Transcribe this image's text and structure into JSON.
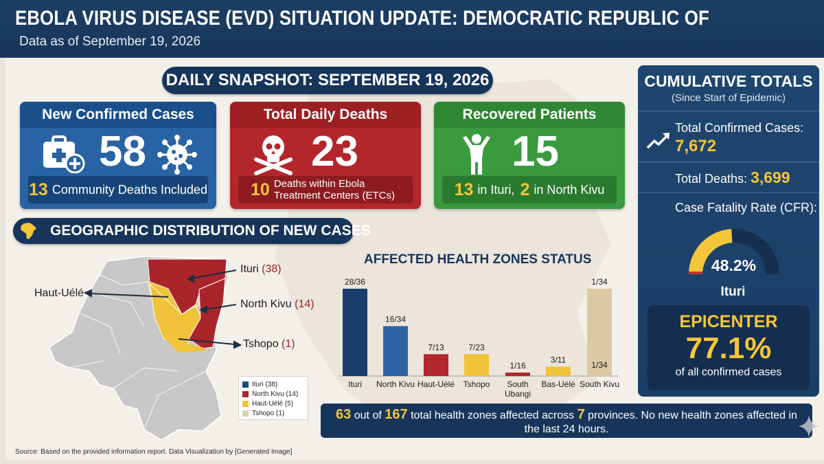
{
  "header": {
    "title": "EBOLA VIRUS DISEASE (EVD) SITUATION UPDATE: DEMOCRATIC REPUBLIC OF THE CONGO (DRC)",
    "subtitle": "Data as of September 19, 2026"
  },
  "snapshot": {
    "title": "DAILY SNAPSHOT: SEPTEMBER 19, 2026",
    "new_cases": {
      "label": "New Confirmed Cases",
      "value": "58",
      "foot_num": "13",
      "foot_text": "Community Deaths Included"
    },
    "deaths": {
      "label": "Total Daily Deaths",
      "value": "23",
      "foot_num": "10",
      "foot_text": "Deaths within Ebola Treatment Centers (ETCs)"
    },
    "recovered": {
      "label": "Recovered Patients",
      "value": "15",
      "foot_num1": "13",
      "foot_text1": "in Ituri,",
      "foot_num2": "2",
      "foot_text2": "in North Kivu"
    }
  },
  "geo": {
    "title": "GEOGRAPHIC DISTRIBUTION OF NEW CASES",
    "labels": {
      "ituri": {
        "name": "Ituri",
        "count": "(38)"
      },
      "north_kivu": {
        "name": "North Kivu",
        "count": "(14)"
      },
      "tshopo": {
        "name": "Tshopo",
        "count": "(1)"
      },
      "haut_uele": {
        "name": "Haut-Uélé"
      }
    },
    "legend": [
      {
        "label": "Ituri (38)",
        "color": "#1a4a86"
      },
      {
        "label": "North Kivu (14)",
        "color": "#a9252a"
      },
      {
        "label": "Haut-Uélé (5)",
        "color": "#f0c33a"
      },
      {
        "label": "Tshopo (1)",
        "color": "#ddd1a9"
      }
    ]
  },
  "chart_data": {
    "type": "bar",
    "title": "AFFECTED HEALTH ZONES STATUS",
    "categories": [
      "Ituri",
      "North Kivu",
      "Haut-Uélé",
      "Tshopo",
      "South Ubangi",
      "Bas-Uélé",
      "South Kivu"
    ],
    "values": [
      28,
      16,
      7,
      7,
      1,
      3,
      1
    ],
    "totals": [
      36,
      34,
      13,
      23,
      16,
      11,
      34
    ],
    "labels": [
      "28/36",
      "16/34",
      "7/13",
      "7/23",
      "1/16",
      "3/11",
      "1/34"
    ],
    "inner_label": "1/34",
    "colors": [
      "#1a3f6e",
      "#2c64a4",
      "#b3262b",
      "#f0c33a",
      "#b3262b",
      "#f0c33a",
      "#dcc9a3"
    ]
  },
  "summary": {
    "num1": "63",
    "t1": "out of",
    "num2": "167",
    "t2": "total health zones affected across",
    "num3": "7",
    "t3": "provinces. No new health zones affected in the last 24 hours."
  },
  "cumulative": {
    "title": "CUMULATIVE TOTALS",
    "subtitle": "(Since Start of Epidemic)",
    "cases_label": "Total Confirmed Cases:",
    "cases_value": "7,672",
    "deaths_label": "Total Deaths:",
    "deaths_value": "3,699",
    "cfr_label": "Case Fatality Rate (CFR):",
    "cfr_value": "48.2%",
    "cfr_fraction": 0.482,
    "cfr_region": "Ituri",
    "epicenter_label": "EPICENTER",
    "epicenter_value": "77.1%",
    "epicenter_text": "of all confirmed cases"
  },
  "source": "Source: Based on the provided information report. Data Visualization by [Generated Image]"
}
